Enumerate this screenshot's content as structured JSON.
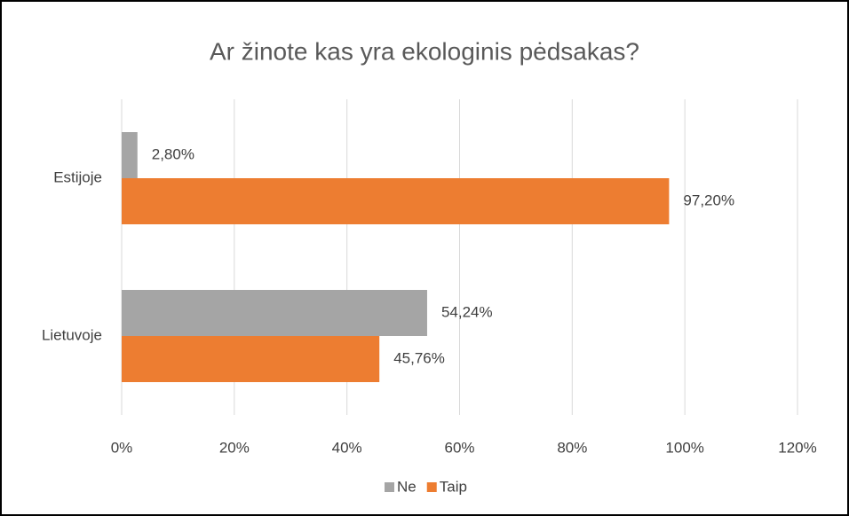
{
  "chart_data": {
    "type": "hbar",
    "title": "Ar žinote kas yra ekologinis pėdsakas?",
    "categories": [
      "Estijoje",
      "Lietuvoje"
    ],
    "series": [
      {
        "name": "Ne",
        "color": "#a5a5a5",
        "values": [
          2.8,
          54.24
        ],
        "value_labels": [
          "2,80%",
          "54,24%"
        ]
      },
      {
        "name": "Taip",
        "color": "#ed7d31",
        "values": [
          97.2,
          45.76
        ],
        "value_labels": [
          "97,20%",
          "45,76%"
        ]
      }
    ],
    "xlim": [
      0,
      120
    ],
    "xticks": [
      {
        "value": 0,
        "label": "0%"
      },
      {
        "value": 20,
        "label": "20%"
      },
      {
        "value": 40,
        "label": "40%"
      },
      {
        "value": 60,
        "label": "60%"
      },
      {
        "value": 80,
        "label": "80%"
      },
      {
        "value": 100,
        "label": "100%"
      },
      {
        "value": 120,
        "label": "120%"
      }
    ],
    "grid": true,
    "legend": "bottom"
  }
}
